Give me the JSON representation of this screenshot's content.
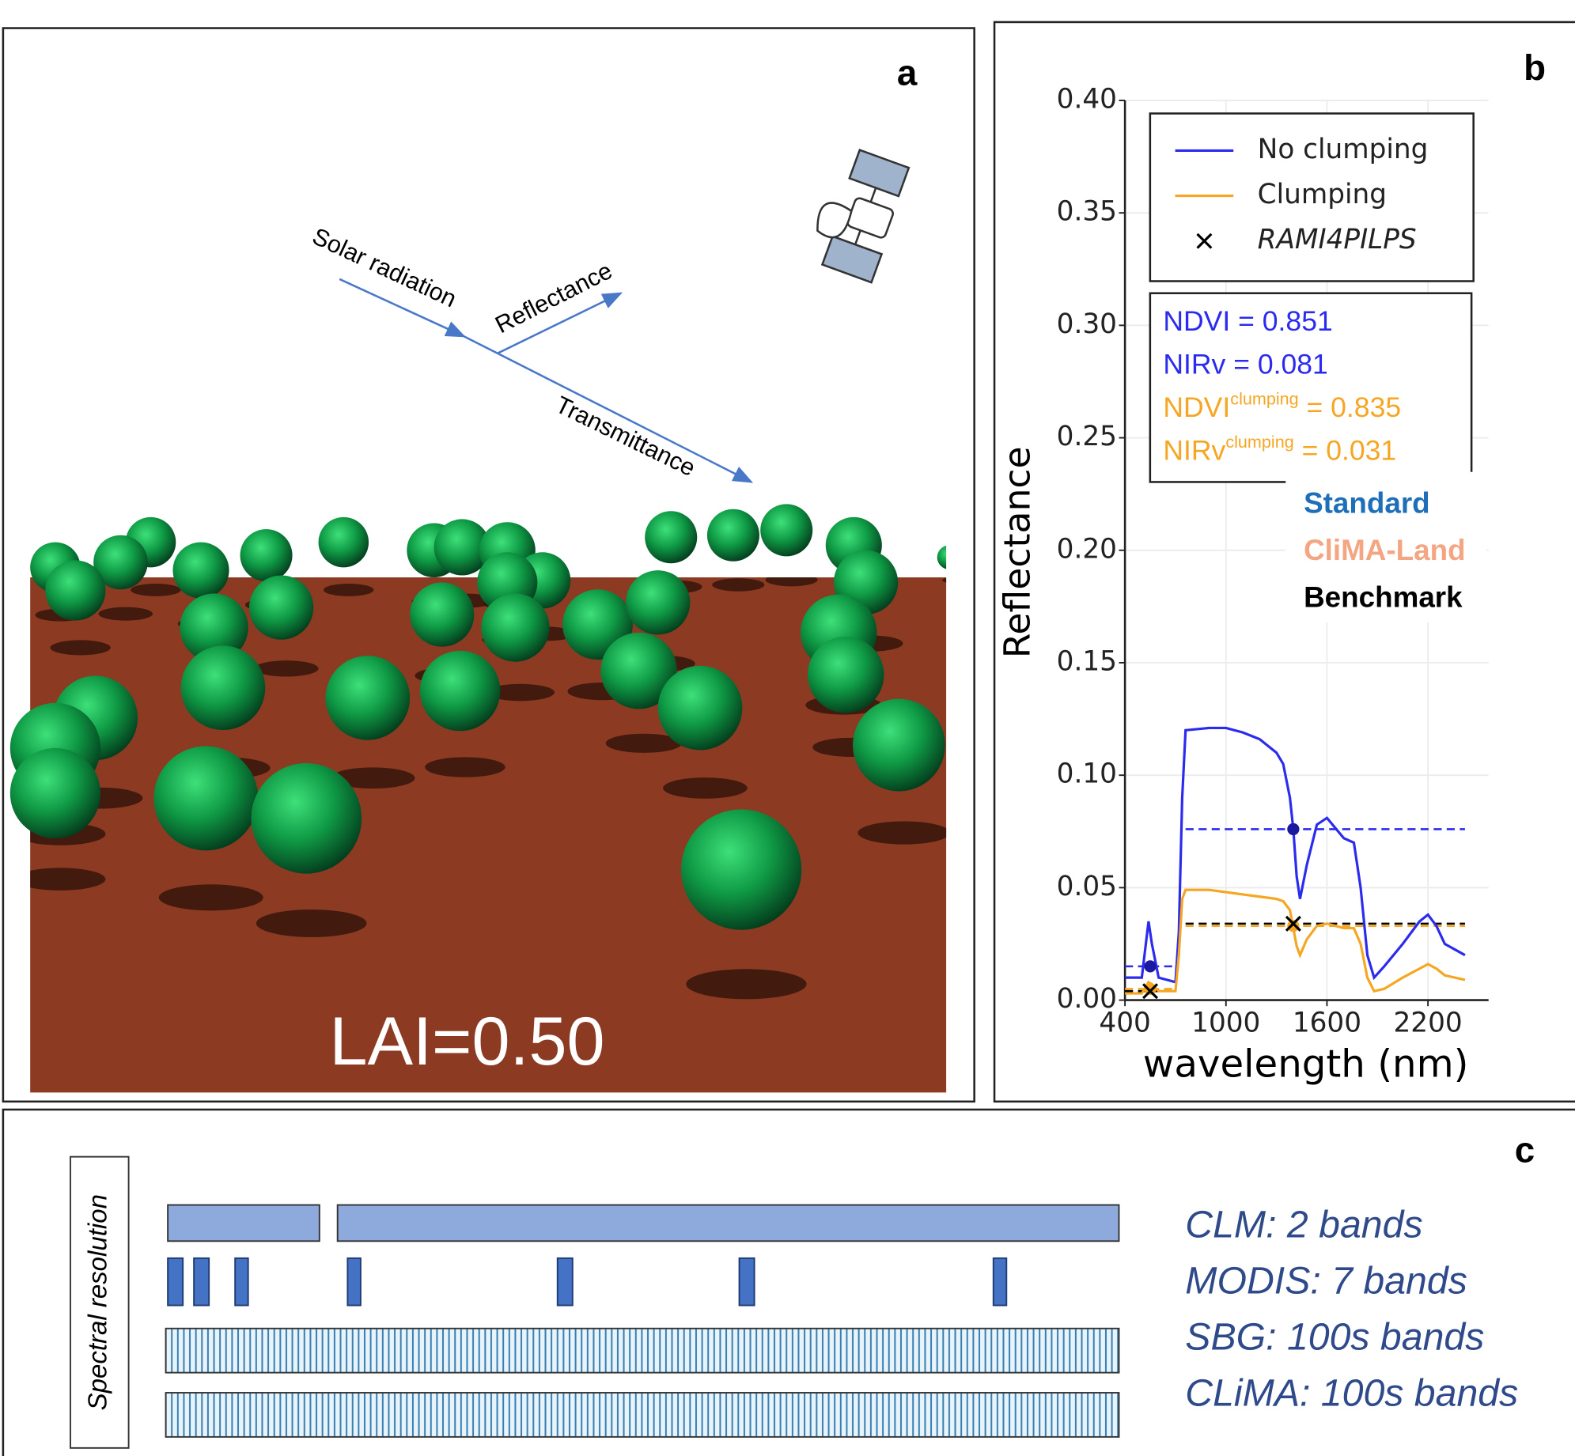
{
  "panel_a": {
    "label": "a",
    "arrows": [
      "Solar radiation",
      "Reflectance",
      "Transmittance"
    ],
    "lai": "LAI=0.50"
  },
  "chart_data": {
    "type": "line",
    "label": "b",
    "ylabel": "Reflectance",
    "xlabel": "wavelength (nm)",
    "xlim": [
      400,
      2560
    ],
    "xticks": [
      400,
      1000,
      1600,
      2200
    ],
    "ylim": [
      0,
      0.4
    ],
    "yticks": [
      {
        "value": 0,
        "label": "0.00"
      },
      {
        "value": 0.05,
        "label": "0.05"
      },
      {
        "value": 0.1,
        "label": "0.10"
      },
      {
        "value": 0.15,
        "label": "0.15"
      },
      {
        "value": 0.2,
        "label": "0.20"
      },
      {
        "value": 0.25,
        "label": "0.25"
      },
      {
        "value": 0.3,
        "label": "0.30"
      },
      {
        "value": 0.35,
        "label": "0.35"
      },
      {
        "value": 0.4,
        "label": "0.40"
      }
    ],
    "grid": true,
    "legend": "upper right",
    "x": [
      400,
      500,
      540,
      560,
      600,
      700,
      720,
      740,
      760,
      900,
      1000,
      1100,
      1200,
      1300,
      1340,
      1380,
      1400,
      1420,
      1440,
      1480,
      1540,
      1600,
      1700,
      1760,
      1800,
      1840,
      1880,
      1940,
      2050,
      2150,
      2200,
      2250,
      2300,
      2420
    ],
    "series": [
      {
        "name": "No clumping",
        "color": "#2b2bf0",
        "values": [
          0.01,
          0.01,
          0.035,
          0.025,
          0.01,
          0.008,
          0.03,
          0.09,
          0.12,
          0.121,
          0.121,
          0.119,
          0.116,
          0.11,
          0.105,
          0.09,
          0.076,
          0.055,
          0.045,
          0.06,
          0.078,
          0.081,
          0.072,
          0.07,
          0.05,
          0.02,
          0.01,
          0.015,
          0.025,
          0.035,
          0.038,
          0.033,
          0.025,
          0.02
        ],
        "points": {
          "x": [
            550,
            1400
          ],
          "values": [
            0.015,
            0.076
          ]
        }
      },
      {
        "name": "Clumping",
        "color": "#f5a623",
        "values": [
          0.003,
          0.003,
          0.008,
          0.007,
          0.004,
          0.004,
          0.02,
          0.045,
          0.049,
          0.049,
          0.048,
          0.047,
          0.046,
          0.045,
          0.044,
          0.04,
          0.032,
          0.024,
          0.02,
          0.027,
          0.033,
          0.034,
          0.032,
          0.032,
          0.025,
          0.01,
          0.004,
          0.005,
          0.01,
          0.014,
          0.016,
          0.014,
          0.011,
          0.009
        ],
        "points": {
          "x": [
            550,
            1400
          ],
          "values": [
            0.005,
            0.033
          ]
        }
      },
      {
        "name": "RAMI4PILPS",
        "color": "#000000",
        "marker": "x",
        "x": [
          550,
          1400
        ],
        "values": [
          0.004,
          0.034
        ]
      }
    ],
    "reference_lines": [
      {
        "color": "#2b2bf0",
        "y": 0.076,
        "x": [
          760,
          2420
        ]
      },
      {
        "color": "#f5a623",
        "y": 0.033,
        "x": [
          760,
          2420
        ]
      },
      {
        "color": "#000000",
        "y": 0.034,
        "x": [
          760,
          2420
        ]
      },
      {
        "color": "#2b2bf0",
        "y": 0.015,
        "x": [
          400,
          700
        ]
      },
      {
        "color": "#f5a623",
        "y": 0.005,
        "x": [
          400,
          700
        ]
      },
      {
        "color": "#000000",
        "y": 0.004,
        "x": [
          400,
          700
        ]
      }
    ],
    "annotations": [
      {
        "text": "NDVI = 0.851",
        "color": "#2b2bf0"
      },
      {
        "text": "NIRv = 0.081",
        "color": "#2b2bf0"
      },
      {
        "text": "NDVI",
        "sup": "clumping",
        "tail": " = 0.835",
        "color": "#f5a623"
      },
      {
        "text": "NIRv",
        "sup": "clumping",
        "tail": " = 0.031",
        "color": "#f5a623"
      }
    ],
    "model_labels": [
      {
        "text": "Standard",
        "color": "#1f6fb8"
      },
      {
        "text": "CliMA-Land",
        "color": "#f4a582"
      },
      {
        "text": "Benchmark",
        "color": "#000000"
      }
    ]
  },
  "panel_c": {
    "label": "c",
    "axis_label": "Spectral resolution",
    "rows": [
      "CLM: 2 bands",
      "MODIS: 7 bands",
      "SBG: 100s bands",
      "CLiMA: 100s bands"
    ]
  }
}
